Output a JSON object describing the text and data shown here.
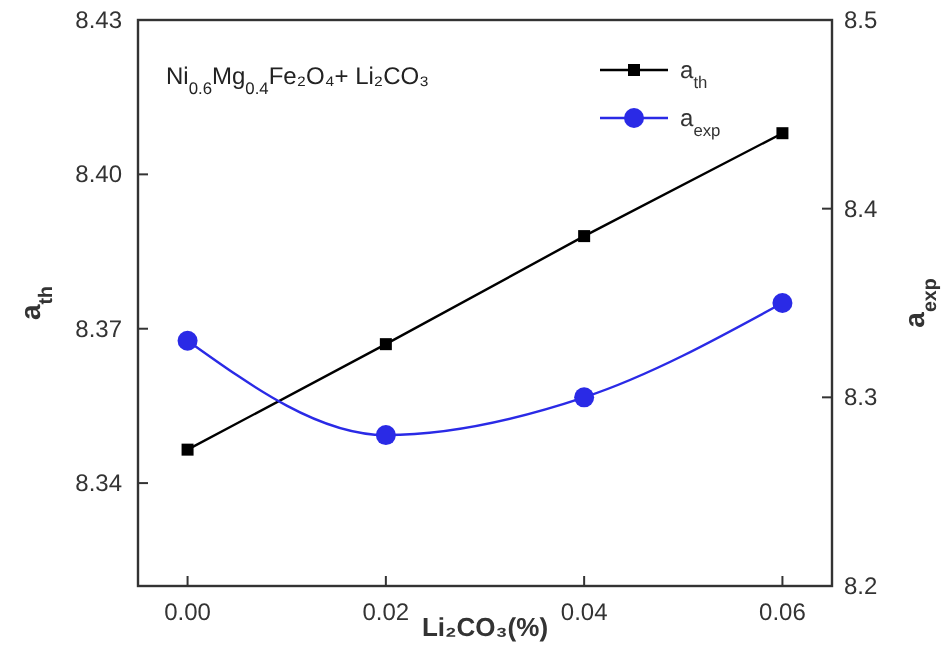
{
  "chart_data": {
    "type": "line",
    "xlabel": "Li₂CO₃(%)",
    "ylabel": "a$_{th}$",
    "y2label": "a$_{exp}$",
    "annotations": [
      "Ni$_{0.6}$Mg$_{0.4}$Fe₂O₄+ Li₂CO₃"
    ],
    "x": [
      0,
      0.02,
      0.04,
      0.06
    ],
    "xlim": [
      -0.005,
      0.065
    ],
    "xticks": [
      {
        "value": 0,
        "label": "0.00"
      },
      {
        "value": 0.02,
        "label": "0.02"
      },
      {
        "value": 0.04,
        "label": "0.04"
      },
      {
        "value": 0.06,
        "label": "0.06"
      }
    ],
    "ylim": [
      8.32,
      8.43
    ],
    "yticks": [
      {
        "value": 8.34,
        "label": "8.34"
      },
      {
        "value": 8.37,
        "label": "8.37"
      },
      {
        "value": 8.4,
        "label": "8.40"
      },
      {
        "value": 8.43,
        "label": "8.43"
      }
    ],
    "y2lim": [
      8.2,
      8.5
    ],
    "y2ticks": [
      8.2,
      8.3,
      8.4,
      8.5
    ],
    "legend": "top right",
    "grid": false,
    "line_style": "solid",
    "series": [
      {
        "name": "a$_{th}$",
        "color": "#000000",
        "marker": "square",
        "values": [
          8.3465,
          8.367,
          8.388,
          8.408
        ]
      },
      {
        "name": "a$_{exp}$",
        "color": "#2a2ae6",
        "marker": "circle",
        "axis": "y2",
        "values": [
          8.33,
          8.28,
          8.3,
          8.35
        ]
      }
    ]
  }
}
